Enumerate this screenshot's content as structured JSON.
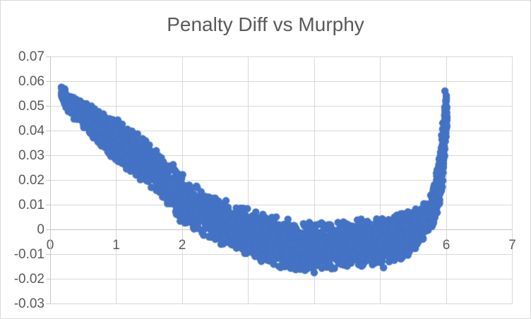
{
  "chart_data": {
    "type": "scatter",
    "title": "Penalty Diff vs Murphy",
    "xlabel": "",
    "ylabel": "",
    "legend": "none",
    "grid": "on",
    "x_axis": {
      "min": 0,
      "max": 7,
      "tick_interval": 1,
      "tick_labels": [
        "0",
        "1",
        "2",
        "3",
        "4",
        "5",
        "6",
        "7"
      ]
    },
    "y_axis": {
      "min": -0.03,
      "max": 0.07,
      "tick_interval": 0.01,
      "tick_labels": [
        "-0.03",
        "-0.02",
        "-0.01",
        "0",
        "0.01",
        "0.02",
        "0.03",
        "0.04",
        "0.05",
        "0.06",
        "0.07"
      ]
    },
    "colors": {
      "marker": "#4472C4",
      "gridline": "#D9D9D9",
      "axis_line": "#C6C6C6",
      "tick_label": "#595959",
      "title": "#595959",
      "background": "#FFFFFF",
      "chart_border": "#D9D9D9"
    },
    "marker": {
      "shape": "circle",
      "radius_px": 5.2
    },
    "point_cloud": {
      "description": "dense U-shaped band of points; center and half-spread of y at sampled x",
      "n_points": 3200,
      "n_spike_points": 350,
      "spike_x_range": [
        5.78,
        6.01
      ],
      "seed": 7,
      "x_min": 0.17,
      "x_max": 6.0,
      "envelope": {
        "x": [
          0.17,
          0.3,
          0.5,
          0.75,
          1.0,
          1.25,
          1.5,
          1.75,
          2.0,
          2.25,
          2.5,
          2.75,
          3.0,
          3.25,
          3.5,
          3.75,
          4.0,
          4.25,
          4.5,
          4.75,
          5.0,
          5.2,
          5.4,
          5.55,
          5.7,
          5.8,
          5.9,
          5.95,
          6.0
        ],
        "center": [
          0.0555,
          0.0505,
          0.0465,
          0.041,
          0.036,
          0.0312,
          0.0265,
          0.0205,
          0.012,
          0.008,
          0.004,
          0.0015,
          -0.001,
          -0.0035,
          -0.0055,
          -0.0065,
          -0.007,
          -0.0068,
          -0.006,
          -0.0052,
          -0.0045,
          -0.004,
          -0.002,
          0.0005,
          0.004,
          0.009,
          0.02,
          0.031,
          0.046
        ],
        "spread": [
          0.003,
          0.0042,
          0.0055,
          0.0072,
          0.009,
          0.009,
          0.0088,
          0.009,
          0.0105,
          0.0095,
          0.009,
          0.0095,
          0.01,
          0.01,
          0.01,
          0.01,
          0.0098,
          0.0097,
          0.0096,
          0.0098,
          0.01,
          0.0095,
          0.009,
          0.008,
          0.0075,
          0.0078,
          0.012,
          0.013,
          0.009
        ]
      },
      "notable_points": [
        {
          "x": 0.17,
          "y": 0.0575,
          "note": "leftmost/highest left point"
        },
        {
          "x": 5.98,
          "y": 0.056,
          "note": "top of right spike"
        },
        {
          "x": 4.0,
          "y": -0.0175,
          "note": "valley bottom"
        }
      ],
      "outliers": [
        [
          5.05,
          -0.0155
        ]
      ]
    }
  }
}
